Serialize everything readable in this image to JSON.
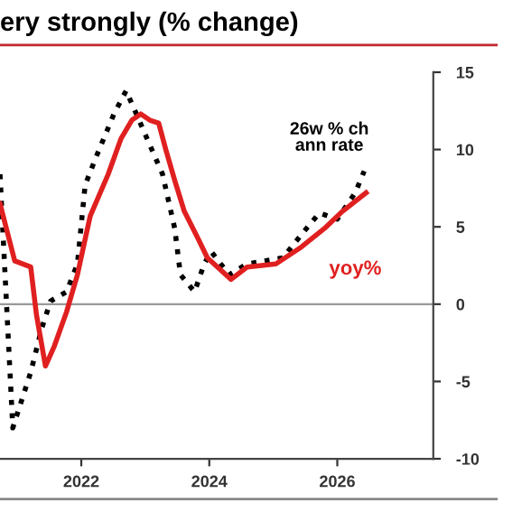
{
  "chart_data": {
    "type": "line",
    "title": "ery strongly (% change)",
    "xlim": [
      2020.73,
      2027.5
    ],
    "xticks": [
      2022,
      2024,
      2026
    ],
    "ylim": [
      -10,
      15
    ],
    "yticks": [
      -10,
      -5,
      0,
      5,
      10,
      15
    ],
    "grid": false,
    "legend": false,
    "ref_lines": [
      {
        "axis": "y",
        "value": 0,
        "color": "#999999"
      }
    ],
    "series": [
      {
        "name": "26w % ch\nann rate",
        "color": "#000000",
        "line_style": "dotted",
        "x": [
          2020.73,
          2020.93,
          2021.21,
          2021.38,
          2021.52,
          2021.77,
          2021.94,
          2022.06,
          2022.23,
          2022.51,
          2022.7,
          2022.85,
          2023.07,
          2023.27,
          2023.46,
          2023.55,
          2023.77,
          2023.92,
          2024.03,
          2024.31,
          2024.59,
          2025.15,
          2025.44,
          2025.72,
          2026.0,
          2026.28,
          2026.42
        ],
        "values": [
          8.4,
          -8.0,
          -4.4,
          -1.6,
          0.2,
          0.8,
          2.6,
          7.7,
          9.5,
          12.3,
          13.8,
          12.4,
          10.3,
          8.4,
          4.9,
          1.9,
          0.8,
          2.6,
          3.4,
          1.9,
          2.6,
          3.0,
          4.5,
          5.9,
          5.5,
          7.2,
          8.6
        ]
      },
      {
        "name": "yoy%",
        "color": "#e02020",
        "line_style": "solid",
        "x": [
          2020.73,
          2020.96,
          2021.21,
          2021.3,
          2021.44,
          2021.58,
          2021.77,
          2021.94,
          2022.06,
          2022.14,
          2022.42,
          2022.62,
          2022.79,
          2022.93,
          2023.07,
          2023.21,
          2023.32,
          2023.46,
          2023.61,
          2023.83,
          2023.97,
          2024.34,
          2024.59,
          2025.04,
          2025.44,
          2025.8,
          2026.08,
          2026.45
        ],
        "values": [
          6.5,
          2.8,
          2.4,
          -0.7,
          -4.0,
          -2.7,
          -0.5,
          1.9,
          4.2,
          5.7,
          8.4,
          10.7,
          11.9,
          12.3,
          11.9,
          11.7,
          10.0,
          8.0,
          6.0,
          4.2,
          3.0,
          1.6,
          2.4,
          2.6,
          3.7,
          4.9,
          6.0,
          7.2
        ]
      }
    ]
  }
}
